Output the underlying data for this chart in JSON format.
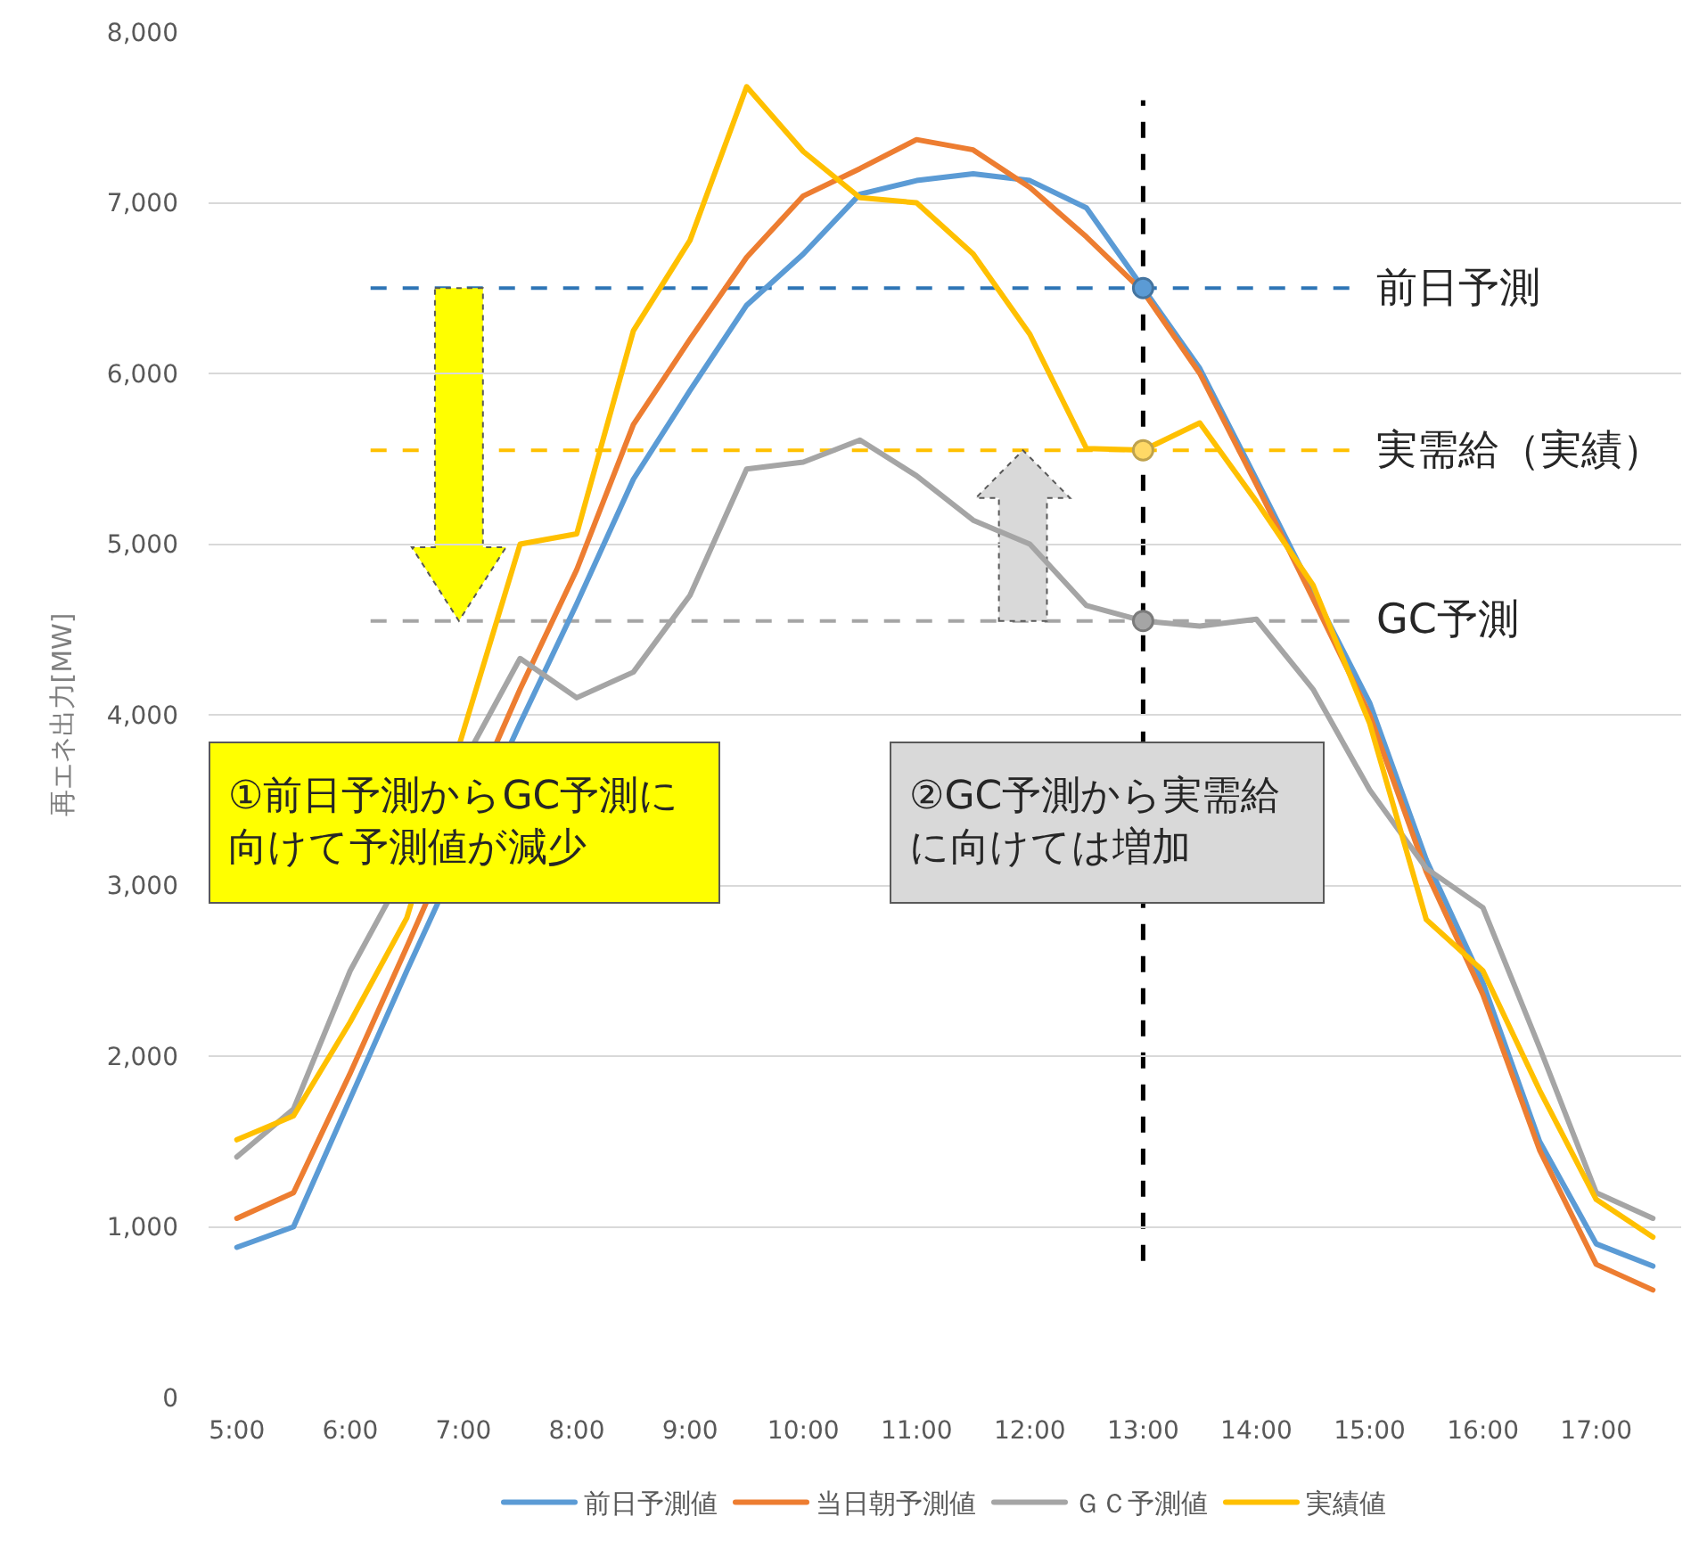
{
  "chart_data": {
    "type": "line",
    "ylabel": "再エネ出力[MW]",
    "annotations": [
      "①前日予測からGC予測に向けて予測値が減少",
      "②GC予測から実需給に向けては増加"
    ],
    "x": [
      5,
      5.5,
      6,
      6.5,
      7,
      7.5,
      8,
      8.5,
      9,
      9.5,
      10,
      10.5,
      11,
      11.5,
      12,
      12.5,
      13,
      13.5,
      14,
      14.5,
      15,
      15.5,
      16,
      16.5,
      17,
      17.5
    ],
    "xlim": [
      4.75,
      17.75
    ],
    "xticks": [
      {
        "value": 5,
        "label": "5:00"
      },
      {
        "value": 6,
        "label": "6:00"
      },
      {
        "value": 7,
        "label": "7:00"
      },
      {
        "value": 8,
        "label": "8:00"
      },
      {
        "value": 9,
        "label": "9:00"
      },
      {
        "value": 10,
        "label": "10:00"
      },
      {
        "value": 11,
        "label": "11:00"
      },
      {
        "value": 12,
        "label": "12:00"
      },
      {
        "value": 13,
        "label": "13:00"
      },
      {
        "value": 14,
        "label": "14:00"
      },
      {
        "value": 15,
        "label": "15:00"
      },
      {
        "value": 16,
        "label": "16:00"
      },
      {
        "value": 17,
        "label": "17:00"
      }
    ],
    "ylim": [
      0,
      8000
    ],
    "yticks": [
      0,
      {
        "value": 1000,
        "label": "1,000"
      },
      {
        "value": 2000,
        "label": "2,000"
      },
      {
        "value": 3000,
        "label": "3,000"
      },
      {
        "value": 4000,
        "label": "4,000"
      },
      {
        "value": 5000,
        "label": "5,000"
      },
      {
        "value": 6000,
        "label": "6,000"
      },
      {
        "value": 7000,
        "label": "7,000"
      },
      {
        "value": 8000,
        "label": "8,000"
      }
    ],
    "series": [
      {
        "name": "前日予測値",
        "color": "#5b9bd5",
        "values": [
          880,
          1000,
          1750,
          2500,
          null,
          3950,
          4650,
          5380,
          5900,
          6400,
          6700,
          7050,
          7130,
          7170,
          7130,
          6970,
          6500,
          6030,
          5380,
          4720,
          4070,
          3150,
          2430,
          1500,
          900,
          770
        ]
      },
      {
        "name": "当日朝予測値",
        "color": "#ed7d31",
        "values": [
          1050,
          1200,
          1900,
          2640,
          null,
          4150,
          4850,
          5700,
          6200,
          6680,
          7040,
          7200,
          7370,
          7310,
          7090,
          6800,
          6480,
          6000,
          5350,
          4680,
          4000,
          3080,
          2360,
          1450,
          780,
          630
        ]
      },
      {
        "name": "ＧＣ予測値",
        "color": "#a5a5a5",
        "values": [
          1410,
          1690,
          2500,
          null,
          null,
          4330,
          4100,
          4250,
          4700,
          5440,
          5480,
          5610,
          5400,
          5140,
          5000,
          4640,
          4550,
          4520,
          4560,
          4150,
          3560,
          3100,
          2870,
          2050,
          1200,
          1050
        ]
      },
      {
        "name": "実績値",
        "color": "#ffc000",
        "values": [
          1510,
          1650,
          2200,
          2810,
          null,
          5000,
          5060,
          6250,
          6780,
          7680,
          7300,
          7030,
          7000,
          6700,
          6230,
          5560,
          5550,
          5710,
          5250,
          4760,
          3950,
          2800,
          2500,
          1800,
          1160,
          940
        ]
      },
      {
        "type": "scatter",
        "marker": "circle",
        "color": "#5b9bd5",
        "values": [
          null,
          null,
          null,
          null,
          null,
          null,
          null,
          null,
          null,
          null,
          null,
          null,
          null,
          null,
          null,
          null,
          6500,
          null,
          null,
          null,
          null,
          null,
          null,
          null,
          null,
          null
        ]
      },
      {
        "type": "scatter",
        "marker": "circle",
        "color": "#ffd966",
        "values": [
          null,
          null,
          null,
          null,
          null,
          null,
          null,
          null,
          null,
          null,
          null,
          null,
          null,
          null,
          null,
          null,
          5550,
          null,
          null,
          null,
          null,
          null,
          null,
          null,
          null,
          null
        ]
      },
      {
        "type": "scatter",
        "marker": "circle",
        "color": "#a5a5a5",
        "values": [
          null,
          null,
          null,
          null,
          null,
          null,
          null,
          null,
          null,
          null,
          null,
          null,
          null,
          null,
          null,
          null,
          4550,
          null,
          null,
          null,
          null,
          null,
          null,
          null,
          null,
          null
        ]
      }
    ],
    "ref_lines": [
      {
        "axis": "y",
        "value": 6500,
        "label": "前日予測",
        "color": "#2e75b6",
        "line_style": "dashed"
      },
      {
        "axis": "y",
        "value": 5550,
        "label": "実需給（実績）",
        "color": "#ffc000",
        "line_style": "dashed"
      },
      {
        "axis": "y",
        "value": 4550,
        "label": "GC予測",
        "color": "#a5a5a5",
        "line_style": "dashed"
      },
      {
        "axis": "x",
        "value": 13,
        "color": "#000000",
        "line_style": "dashed"
      }
    ],
    "grid": "y",
    "legend": "bottom"
  }
}
